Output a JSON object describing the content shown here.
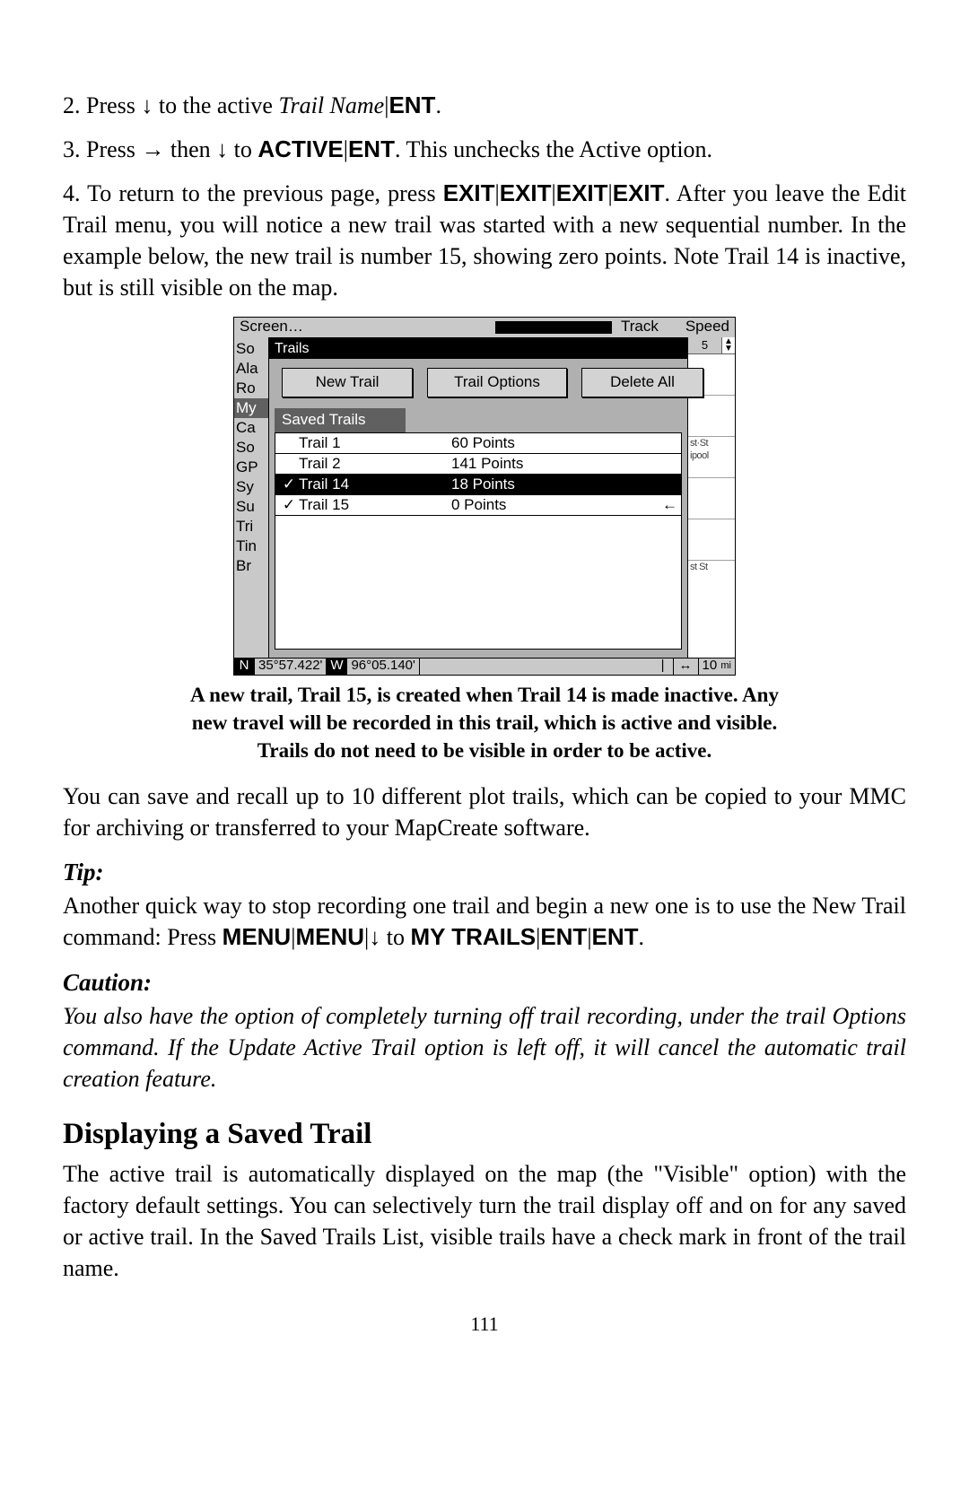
{
  "step2": {
    "prefix": "2. Press ",
    "arrow": "↓",
    "mid": " to the active ",
    "trail_name": "Trail Name",
    "sep": "|",
    "ent": "ENT",
    "suffix": "."
  },
  "step3": {
    "prefix": "3. Press ",
    "arrow1": "→",
    "mid1": " then ",
    "arrow2": "↓",
    "mid2": " to ",
    "active": "ACTIVE",
    "sep": "|",
    "ent": "ENT",
    "suffix": ". This unchecks the Active option."
  },
  "step4": {
    "prefix": "4. To return to the previous page, press ",
    "exit": "EXIT",
    "sep": "|",
    "rest": ". After you leave the Edit Trail menu, you will notice a new trail was started with a new sequential number. In the example below, the new trail is number 15, showing zero points. Note Trail 14 is inactive, but is still visible on the map."
  },
  "screenshot": {
    "menubar": {
      "screen": "Screen…",
      "track": "Track",
      "speed": "Speed"
    },
    "sidebar": [
      "So",
      "Ala",
      "Ro",
      "My",
      "Ca",
      "So",
      "GP",
      "Sy",
      "Su",
      "Tri",
      "Tin",
      "Br"
    ],
    "sidebar_inverted_index": 3,
    "panel_title": "Trails",
    "buttons": {
      "new": "New Trail",
      "options": "Trail Options",
      "delete": "Delete All"
    },
    "saved_header": "Saved Trails",
    "rows": [
      {
        "checked": false,
        "name": "Trail 1",
        "points": "60 Points",
        "selected": false
      },
      {
        "checked": false,
        "name": "Trail 2",
        "points": "141 Points",
        "selected": false
      },
      {
        "checked": true,
        "name": "Trail 14",
        "points": "18 Points",
        "selected": true
      },
      {
        "checked": true,
        "name": "Trail 15",
        "points": "0 Points",
        "selected": false,
        "arrow": true
      }
    ],
    "rightcol": {
      "spin_value": "5",
      "label1": "st·St",
      "label2": "ipool",
      "label3": "st St"
    },
    "statusbar": {
      "n": "N",
      "lat": "35°57.422'",
      "w": "W",
      "lon": "96°05.140'",
      "arrows": "↔",
      "scale": "10",
      "unit": "mi"
    }
  },
  "caption": {
    "l1": "A new trail, Trail 15, is created when Trail 14 is made inactive. Any",
    "l2": "new travel will be recorded in this trail, which is active and visible.",
    "l3": "Trails do not need to be visible in order to be active."
  },
  "para_save": "You can save and recall up to 10 different plot trails, which can be copied to your MMC for archiving or transferred to your MapCreate software.",
  "tip": {
    "head": "Tip:",
    "body_pre": "Another quick way to stop recording one trail and begin a new one is to use the New Trail command: Press ",
    "menu": "MENU",
    "sep": "|",
    "arrow": "↓",
    "to": " to ",
    "my_trails": "MY TRAILS",
    "ent": "ENT",
    "suffix": "."
  },
  "caution": {
    "head": "Caution:",
    "body": "You also have the option of completely turning off trail recording, under the trail Options command. If the Update Active Trail option is left off, it will cancel the automatic trail creation feature."
  },
  "section_heading": "Displaying a Saved Trail",
  "section_body": "The active trail is automatically displayed on the map (the \"Visible\" option) with the factory default settings. You can selectively turn the trail display off and on for any saved or active trail. In the Saved Trails List, visible trails have a check mark in front of the trail name.",
  "page_number": "111"
}
